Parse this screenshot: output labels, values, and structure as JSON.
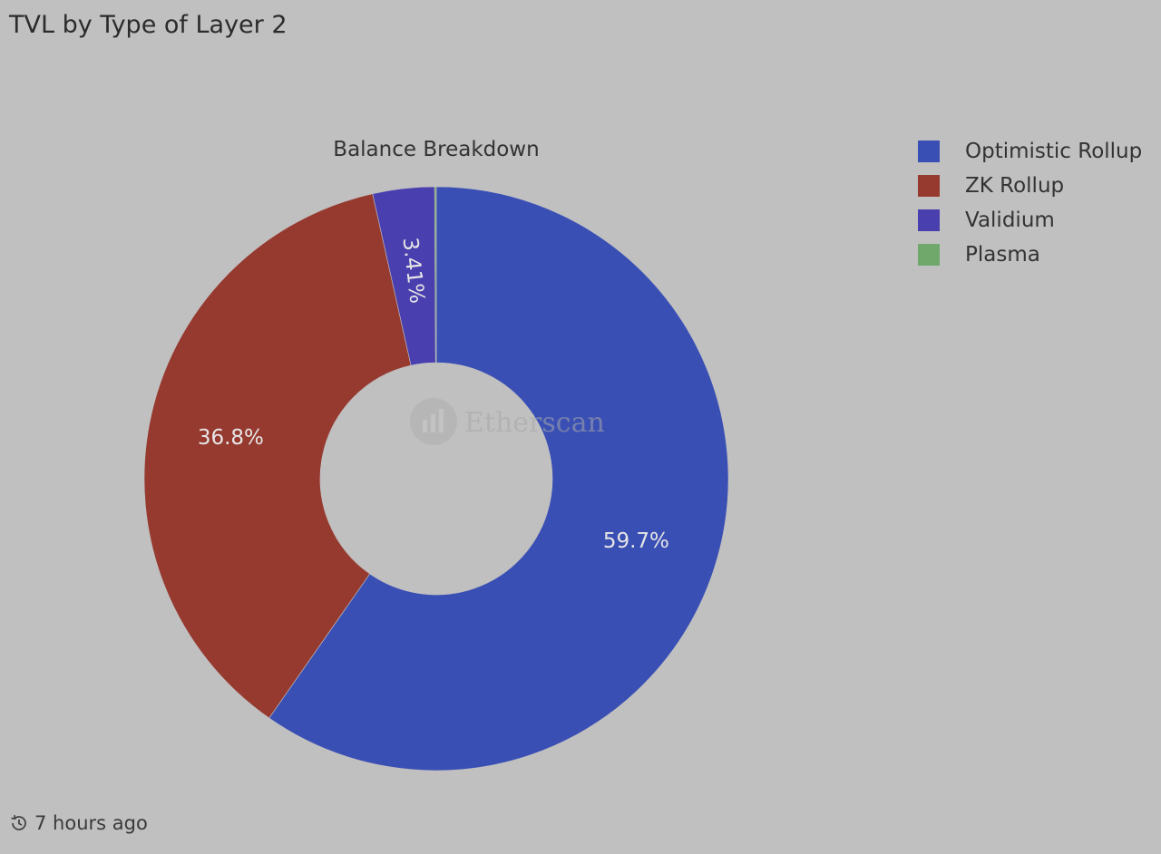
{
  "page": {
    "title": "TVL by Type of Layer 2",
    "updated": "7 hours ago"
  },
  "colors": {
    "background": "#c0c0c0",
    "optimistic": "#3a4fb4",
    "zk": "#963a30",
    "validium": "#4a3fae",
    "plasma": "#6fa86a"
  },
  "watermark": {
    "text": "Etherscan",
    "icon": "etherscan-logo-icon"
  },
  "chart_data": {
    "type": "pie",
    "title": "Balance Breakdown",
    "donut": true,
    "legend_position": "top-right",
    "series": [
      {
        "name": "Optimistic Rollup",
        "value": 59.7,
        "label": "59.7%",
        "color": "#3a4fb4"
      },
      {
        "name": "ZK Rollup",
        "value": 36.8,
        "label": "36.8%",
        "color": "#963a30"
      },
      {
        "name": "Validium",
        "value": 3.41,
        "label": "3.41%",
        "color": "#4a3fae"
      },
      {
        "name": "Plasma",
        "value": 0.09,
        "label": "",
        "color": "#6fa86a"
      }
    ]
  }
}
